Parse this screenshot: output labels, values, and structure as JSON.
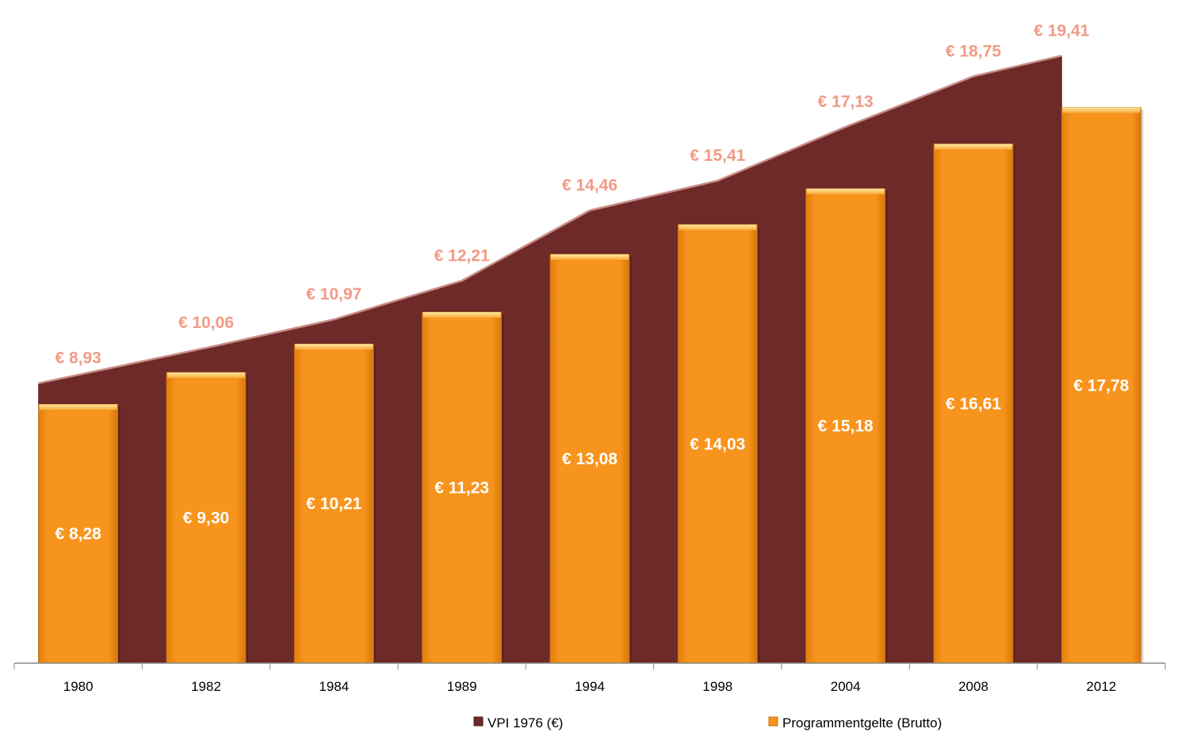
{
  "chart_data": {
    "type": "bar",
    "categories": [
      "1980",
      "1982",
      "1984",
      "1989",
      "1994",
      "1998",
      "2004",
      "2008",
      "2012"
    ],
    "series": [
      {
        "name": "VPI 1976 (€)",
        "kind": "area",
        "values": [
          8.93,
          10.06,
          10.97,
          12.21,
          14.46,
          15.41,
          17.13,
          18.75,
          19.41
        ],
        "labels": [
          "€ 8,93",
          "€ 10,06",
          "€ 10,97",
          "€ 12,21",
          "€ 14,46",
          "€ 15,41",
          "€ 17,13",
          "€ 18,75",
          "€ 19,41"
        ],
        "color": "#6E2A28"
      },
      {
        "name": "Programmentgelte (Brutto)",
        "kind": "bar",
        "values": [
          8.28,
          9.3,
          10.21,
          11.23,
          13.08,
          14.03,
          15.18,
          16.61,
          17.78
        ],
        "labels": [
          "€ 8,28",
          "€ 9,30",
          "€ 10,21",
          "€ 11,23",
          "€ 13,08",
          "€ 14,03",
          "€ 15,18",
          "€ 16,61",
          "€ 17,78"
        ],
        "color": "#F7941D"
      }
    ],
    "ylim": [
      0,
      20
    ],
    "grid": false,
    "legend_position": "bottom",
    "label_color_area": "#F29A86",
    "label_color_bar": "#FFFFFF"
  }
}
